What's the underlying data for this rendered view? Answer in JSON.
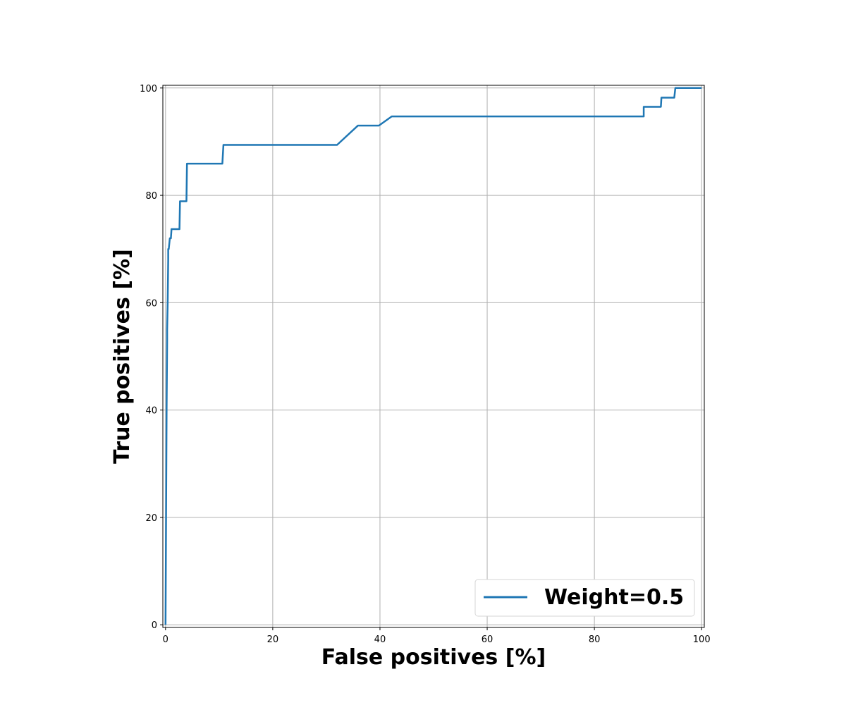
{
  "chart_data": {
    "type": "line",
    "xlabel": "False positives [%]",
    "ylabel": "True positives [%]",
    "xlim": [
      -0.5,
      100.5
    ],
    "ylim": [
      -0.5,
      100.5
    ],
    "xticks": [
      0,
      20,
      40,
      60,
      80,
      100
    ],
    "yticks": [
      0,
      20,
      40,
      60,
      80,
      100
    ],
    "grid": true,
    "legend_position": "lower-right",
    "colors": {
      "series": "#1f77b4",
      "grid": "#b0b0b0",
      "axis": "#000000"
    },
    "series": [
      {
        "name": "Weight=0.5",
        "x": [
          0,
          0.1,
          0.2,
          0.3,
          0.3,
          0.4,
          0.5,
          0.5,
          0.6,
          0.8,
          0.8,
          1.0,
          1.1,
          1.1,
          2.6,
          2.7,
          3.9,
          4.0,
          10.6,
          10.8,
          32.0,
          35.9,
          39.8,
          42.2,
          89.2,
          89.2,
          92.4,
          92.5,
          94.9,
          95.1,
          100
        ],
        "y": [
          0,
          20,
          40,
          53,
          55,
          60,
          68,
          70,
          70,
          72,
          72,
          72,
          73.5,
          73.7,
          73.7,
          78.9,
          78.9,
          85.9,
          85.9,
          89.4,
          89.4,
          93.0,
          93.0,
          94.7,
          94.7,
          96.5,
          96.5,
          98.2,
          98.2,
          100,
          100
        ]
      }
    ]
  }
}
